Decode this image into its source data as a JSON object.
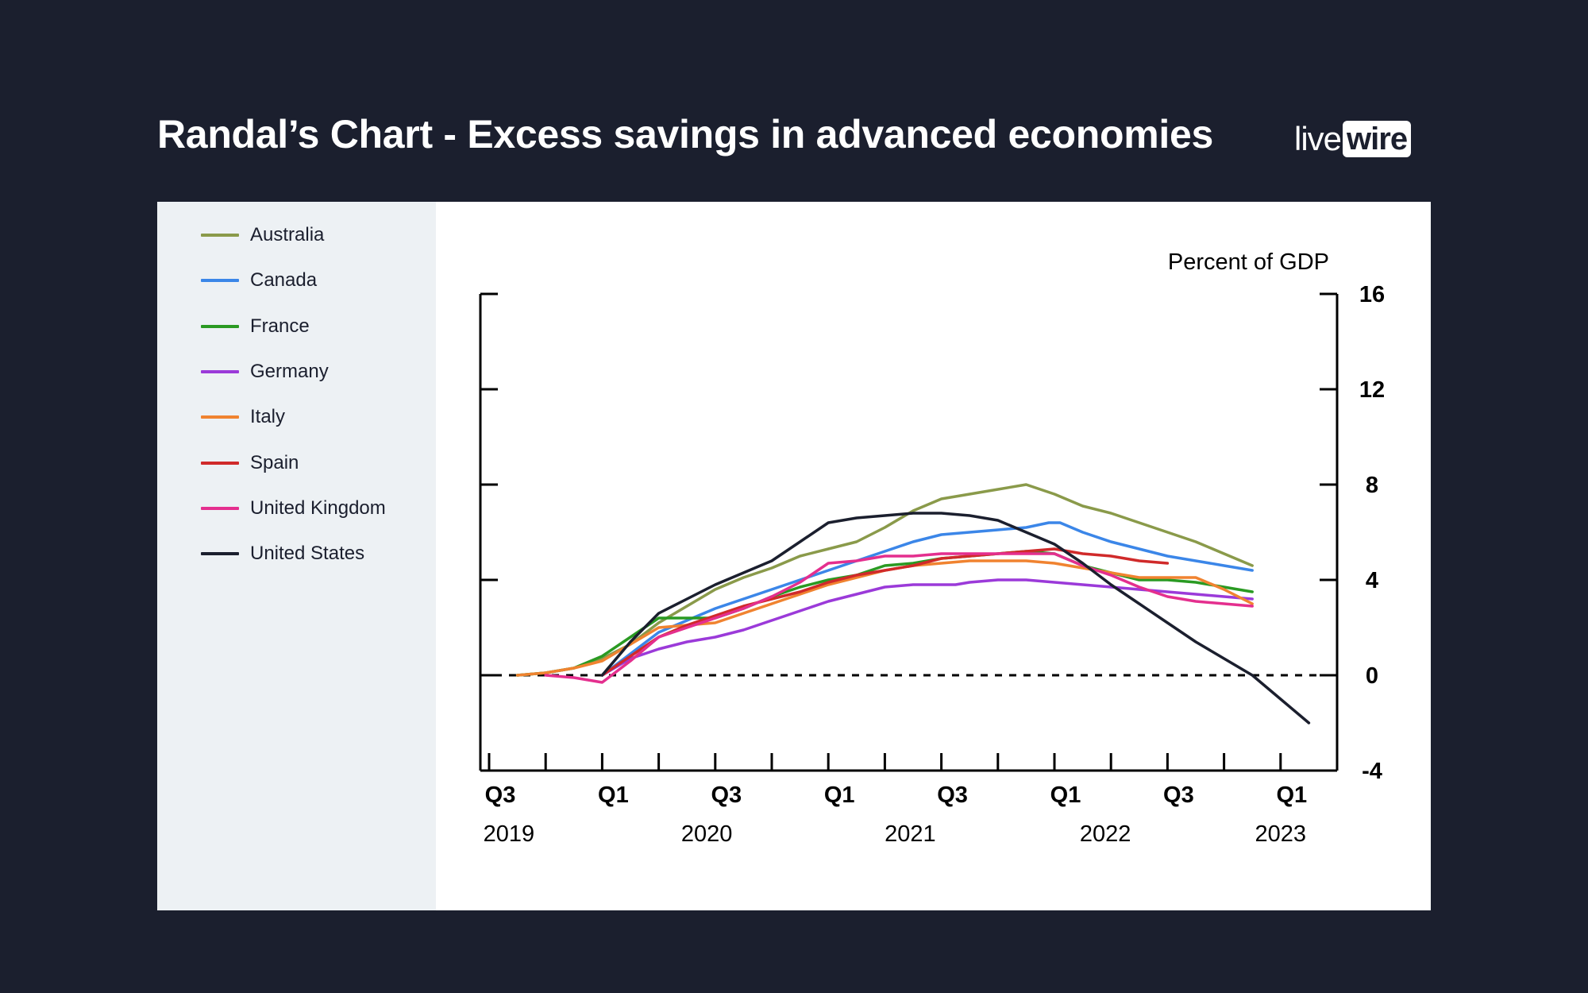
{
  "header": {
    "title": "Randal’s Chart - Excess savings in advanced economies",
    "logo_live": "live",
    "logo_wire": "wire"
  },
  "chart_data": {
    "type": "line",
    "title": "Randal’s Chart - Excess savings in advanced economies",
    "ylabel": "Percent of GDP",
    "ylim": [
      -4,
      16
    ],
    "yticks": [
      -4,
      0,
      4,
      8,
      12,
      16
    ],
    "xlim": [
      0,
      15
    ],
    "x_quarter_labels": [
      {
        "x": 0,
        "label": "Q3"
      },
      {
        "x": 2,
        "label": "Q1"
      },
      {
        "x": 4,
        "label": "Q3"
      },
      {
        "x": 6,
        "label": "Q1"
      },
      {
        "x": 8,
        "label": "Q3"
      },
      {
        "x": 10,
        "label": "Q1"
      },
      {
        "x": 12,
        "label": "Q3"
      },
      {
        "x": 14,
        "label": "Q1"
      }
    ],
    "x_year_labels": [
      {
        "x": 0.35,
        "label": "2019"
      },
      {
        "x": 3.85,
        "label": "2020"
      },
      {
        "x": 7.45,
        "label": "2021"
      },
      {
        "x": 10.9,
        "label": "2022"
      },
      {
        "x": 14.0,
        "label": "2023"
      }
    ],
    "x_index_note": "x = quarters since 2019 Q3",
    "zero_line": "dashed",
    "series": [
      {
        "name": "Australia",
        "color": "#8a9a4a",
        "x": [
          0.5,
          1,
          1.5,
          2,
          2.5,
          3,
          3.5,
          4,
          4.5,
          5,
          5.5,
          6,
          6.5,
          7,
          7.5,
          8,
          8.5,
          9,
          9.5,
          10,
          10.5,
          11,
          11.5,
          12,
          12.5,
          13,
          13.5
        ],
        "y": [
          0,
          0.1,
          0.3,
          0.7,
          1.3,
          2.2,
          2.9,
          3.6,
          4.1,
          4.5,
          5.0,
          5.3,
          5.6,
          6.2,
          6.9,
          7.4,
          7.6,
          7.8,
          8.0,
          7.6,
          7.1,
          6.8,
          6.4,
          6.0,
          5.6,
          5.1,
          4.6
        ]
      },
      {
        "name": "Canada",
        "color": "#3b86e8",
        "x": [
          2,
          2.5,
          3,
          3.5,
          4,
          4.5,
          5,
          5.5,
          6,
          6.5,
          7,
          7.5,
          8,
          8.5,
          9,
          9.5,
          9.9,
          10.1,
          10.5,
          11,
          11.5,
          12,
          12.5,
          13,
          13.5
        ],
        "y": [
          0,
          0.9,
          1.8,
          2.3,
          2.8,
          3.2,
          3.6,
          4.0,
          4.4,
          4.8,
          5.2,
          5.6,
          5.9,
          6.0,
          6.1,
          6.2,
          6.4,
          6.4,
          6.0,
          5.6,
          5.3,
          5.0,
          4.8,
          4.6,
          4.4
        ]
      },
      {
        "name": "France",
        "color": "#2a9a22",
        "x": [
          0.5,
          1,
          1.5,
          2,
          2.5,
          3,
          3.5,
          4,
          4.5,
          5,
          5.5,
          6,
          6.5,
          7,
          7.5,
          8,
          8.5,
          9,
          9.5,
          10,
          10.5,
          11,
          11.5,
          12,
          12.5,
          13,
          13.5
        ],
        "y": [
          0,
          0.1,
          0.3,
          0.8,
          1.6,
          2.4,
          2.4,
          2.4,
          2.8,
          3.3,
          3.7,
          4.0,
          4.2,
          4.6,
          4.7,
          4.9,
          5.0,
          5.1,
          5.2,
          5.1,
          4.6,
          4.3,
          4.0,
          4.0,
          3.9,
          3.7,
          3.5
        ]
      },
      {
        "name": "Germany",
        "color": "#9b3ad9",
        "x": [
          2,
          2.5,
          3,
          3.5,
          4,
          4.5,
          5,
          5.5,
          6,
          6.5,
          7,
          7.5,
          8,
          8.25,
          8.5,
          9,
          9.5,
          10,
          10.5,
          11,
          11.5,
          12,
          12.5,
          13,
          13.5
        ],
        "y": [
          0,
          0.7,
          1.1,
          1.4,
          1.6,
          1.9,
          2.3,
          2.7,
          3.1,
          3.4,
          3.7,
          3.8,
          3.8,
          3.8,
          3.9,
          4.0,
          4.0,
          3.9,
          3.8,
          3.7,
          3.6,
          3.5,
          3.4,
          3.3,
          3.2
        ]
      },
      {
        "name": "Italy",
        "color": "#f08330",
        "x": [
          0.5,
          1,
          1.5,
          2,
          2.5,
          3,
          3.5,
          4,
          4.5,
          5,
          5.5,
          6,
          6.5,
          7,
          7.5,
          8,
          8.5,
          9,
          9.5,
          10,
          10.5,
          11,
          11.5,
          12,
          12.5,
          13,
          13.5
        ],
        "y": [
          0,
          0.1,
          0.3,
          0.6,
          1.3,
          2.0,
          2.1,
          2.2,
          2.6,
          3.0,
          3.4,
          3.8,
          4.1,
          4.4,
          4.6,
          4.7,
          4.8,
          4.8,
          4.8,
          4.7,
          4.5,
          4.3,
          4.1,
          4.1,
          4.1,
          3.6,
          3.0
        ]
      },
      {
        "name": "Spain",
        "color": "#d02a2a",
        "x": [
          2,
          2.5,
          3,
          3.5,
          4,
          4.5,
          5,
          5.5,
          6,
          6.5,
          7,
          7.5,
          8,
          8.5,
          9,
          9.5,
          10,
          10.5,
          11,
          11.5,
          12
        ],
        "y": [
          0,
          0.8,
          1.6,
          2.1,
          2.5,
          2.9,
          3.2,
          3.5,
          3.9,
          4.2,
          4.4,
          4.6,
          4.9,
          5.0,
          5.1,
          5.2,
          5.3,
          5.1,
          5.0,
          4.8,
          4.7
        ]
      },
      {
        "name": "United Kingdom",
        "color": "#e42f8e",
        "x": [
          1,
          1.5,
          2,
          2.5,
          3,
          3.5,
          4,
          4.5,
          5,
          5.5,
          6,
          6.5,
          7,
          7.5,
          8,
          8.5,
          9,
          9.5,
          10,
          10.5,
          11,
          11.5,
          12,
          12.5,
          13,
          13.5
        ],
        "y": [
          0,
          -0.1,
          -0.3,
          0.6,
          1.6,
          2.0,
          2.4,
          2.8,
          3.3,
          3.9,
          4.7,
          4.8,
          5.0,
          5.0,
          5.1,
          5.1,
          5.1,
          5.1,
          5.1,
          4.6,
          4.2,
          3.7,
          3.3,
          3.1,
          3.0,
          2.9
        ]
      },
      {
        "name": "United States",
        "color": "#1b1f2e",
        "x": [
          2,
          2.5,
          3,
          3.5,
          4,
          4.5,
          5,
          5.5,
          6,
          6.5,
          7,
          7.5,
          8,
          8.5,
          9,
          9.5,
          10,
          10.5,
          11,
          11.5,
          12,
          12.5,
          13,
          13.5,
          14,
          14.5
        ],
        "y": [
          0,
          1.4,
          2.6,
          3.2,
          3.8,
          4.3,
          4.8,
          5.6,
          6.4,
          6.6,
          6.7,
          6.8,
          6.8,
          6.7,
          6.5,
          6.0,
          5.5,
          4.7,
          3.8,
          3.0,
          2.2,
          1.4,
          0.7,
          0.0,
          -1.0,
          -2.0
        ]
      }
    ]
  }
}
